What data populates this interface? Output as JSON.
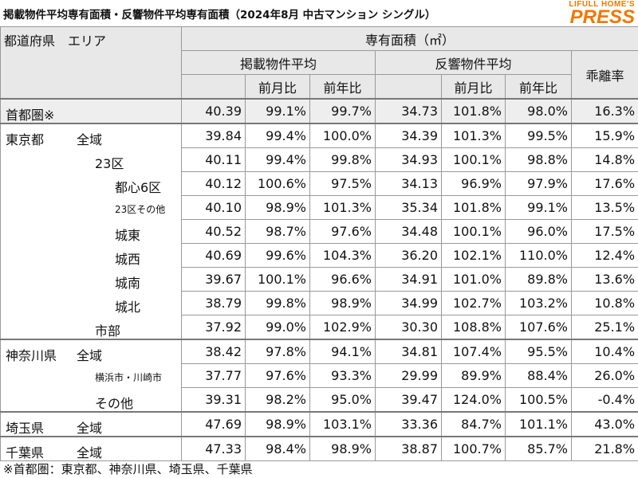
{
  "title": "掲載物件平均専有面積・反響物件平均専有面積（2024年8月 中古マンション シングル）",
  "logo": {
    "top": "LIFULL HOME'S",
    "bottom": "PRESS"
  },
  "table": {
    "header": {
      "label": "都道府県　エリア",
      "area": "専有面積（㎡）",
      "listed": "掲載物件平均",
      "inquired": "反響物件平均",
      "gap": "乖離率",
      "sub": [
        "前月比",
        "前年比",
        "前月比",
        "前年比"
      ]
    },
    "rows": [
      {
        "pref": "首都圏※",
        "values": [
          "40.39",
          "99.1%",
          "99.7%",
          "34.73",
          "101.8%",
          "98.0%",
          "16.3%"
        ]
      },
      {
        "pref": "東京都",
        "area": "全域",
        "values": [
          "39.84",
          "99.4%",
          "100.0%",
          "34.39",
          "101.3%",
          "99.5%",
          "15.9%"
        ]
      },
      {
        "area": "23区",
        "values": [
          "40.11",
          "99.4%",
          "99.8%",
          "34.93",
          "100.1%",
          "98.8%",
          "14.8%"
        ]
      },
      {
        "area": "都心6区",
        "values": [
          "40.12",
          "100.6%",
          "97.5%",
          "34.13",
          "96.9%",
          "97.9%",
          "17.6%"
        ]
      },
      {
        "area": "23区その他",
        "values": [
          "40.10",
          "98.9%",
          "101.3%",
          "35.34",
          "101.8%",
          "99.1%",
          "13.5%"
        ]
      },
      {
        "area": "城東",
        "values": [
          "40.52",
          "98.7%",
          "97.6%",
          "34.48",
          "100.1%",
          "96.0%",
          "17.5%"
        ]
      },
      {
        "area": "城西",
        "values": [
          "40.69",
          "99.6%",
          "104.3%",
          "36.20",
          "102.1%",
          "110.0%",
          "12.4%"
        ]
      },
      {
        "area": "城南",
        "values": [
          "39.67",
          "100.1%",
          "96.6%",
          "34.91",
          "101.0%",
          "89.8%",
          "13.6%"
        ]
      },
      {
        "area": "城北",
        "values": [
          "38.79",
          "99.8%",
          "98.9%",
          "34.99",
          "102.7%",
          "103.2%",
          "10.8%"
        ]
      },
      {
        "area": "市部",
        "values": [
          "37.92",
          "99.0%",
          "102.9%",
          "30.30",
          "108.8%",
          "107.6%",
          "25.1%"
        ]
      },
      {
        "pref": "神奈川県",
        "area": "全域",
        "values": [
          "38.42",
          "97.8%",
          "94.1%",
          "34.81",
          "107.4%",
          "95.5%",
          "10.4%"
        ]
      },
      {
        "area": "横浜市・川崎市",
        "values": [
          "37.77",
          "97.6%",
          "93.3%",
          "29.99",
          "89.9%",
          "88.4%",
          "26.0%"
        ]
      },
      {
        "area": "その他",
        "values": [
          "39.31",
          "98.2%",
          "95.0%",
          "39.47",
          "124.0%",
          "100.5%",
          "-0.4%"
        ]
      },
      {
        "pref": "埼玉県",
        "area": "全域",
        "values": [
          "47.69",
          "98.9%",
          "103.1%",
          "33.36",
          "84.7%",
          "101.1%",
          "43.0%"
        ]
      },
      {
        "pref": "千葉県",
        "area": "全域",
        "values": [
          "47.33",
          "98.4%",
          "98.9%",
          "38.87",
          "100.7%",
          "85.7%",
          "21.8%"
        ]
      }
    ]
  },
  "footnote": "※首都圏：東京都、神奈川県、埼玉県、千葉県"
}
